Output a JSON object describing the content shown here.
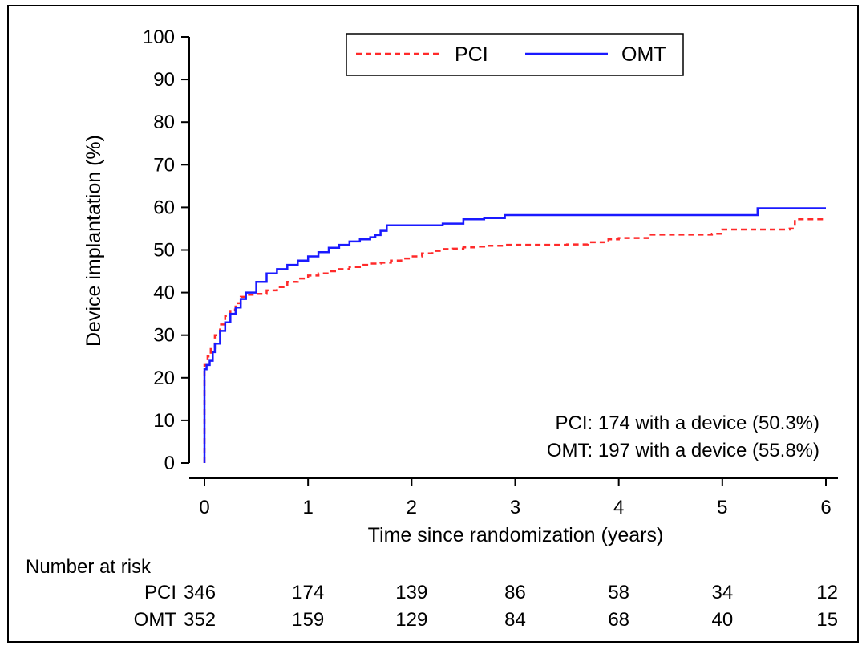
{
  "chart_data": {
    "type": "line",
    "title": "",
    "xlabel": "Time since randomization (years)",
    "ylabel": "Device implantation (%)",
    "xlim": [
      0,
      6
    ],
    "ylim": [
      0,
      100
    ],
    "x_ticks": [
      0,
      1,
      2,
      3,
      4,
      5,
      6
    ],
    "y_ticks": [
      0,
      10,
      20,
      30,
      40,
      50,
      60,
      70,
      80,
      90,
      100
    ],
    "grid": false,
    "legend_placement": "top-center",
    "series": [
      {
        "name": "PCI",
        "color": "#ff2a2a",
        "style": "dashed",
        "points": [
          [
            0,
            0
          ],
          [
            0,
            23
          ],
          [
            0.03,
            25
          ],
          [
            0.06,
            27
          ],
          [
            0.1,
            30
          ],
          [
            0.15,
            32.5
          ],
          [
            0.2,
            34.5
          ],
          [
            0.25,
            36
          ],
          [
            0.3,
            37.5
          ],
          [
            0.35,
            39
          ],
          [
            0.4,
            39.5
          ],
          [
            0.5,
            39.7
          ],
          [
            0.6,
            40.5
          ],
          [
            0.7,
            41.3
          ],
          [
            0.8,
            42.5
          ],
          [
            0.9,
            43.3
          ],
          [
            1.0,
            44
          ],
          [
            1.1,
            44.5
          ],
          [
            1.2,
            45
          ],
          [
            1.3,
            45.5
          ],
          [
            1.4,
            46
          ],
          [
            1.5,
            46.5
          ],
          [
            1.6,
            46.8
          ],
          [
            1.7,
            47
          ],
          [
            1.8,
            47.5
          ],
          [
            1.9,
            48
          ],
          [
            2.0,
            48.5
          ],
          [
            2.1,
            49.2
          ],
          [
            2.2,
            49.8
          ],
          [
            2.3,
            50.2
          ],
          [
            2.4,
            50.3
          ],
          [
            2.5,
            50.6
          ],
          [
            2.6,
            50.8
          ],
          [
            2.7,
            51.0
          ],
          [
            2.9,
            51.2
          ],
          [
            3.5,
            51.3
          ],
          [
            3.7,
            51.8
          ],
          [
            3.9,
            52.5
          ],
          [
            4.0,
            52.8
          ],
          [
            4.3,
            53.6
          ],
          [
            4.9,
            53.8
          ],
          [
            5.0,
            54.8
          ],
          [
            5.65,
            55.0
          ],
          [
            5.7,
            57.2
          ],
          [
            6.0,
            57.3
          ]
        ]
      },
      {
        "name": "OMT",
        "color": "#1a1aff",
        "style": "solid",
        "points": [
          [
            0,
            0
          ],
          [
            0,
            22
          ],
          [
            0.02,
            23
          ],
          [
            0.05,
            24
          ],
          [
            0.08,
            26
          ],
          [
            0.1,
            28
          ],
          [
            0.15,
            31
          ],
          [
            0.2,
            33
          ],
          [
            0.25,
            35
          ],
          [
            0.3,
            36.5
          ],
          [
            0.35,
            38.5
          ],
          [
            0.4,
            40
          ],
          [
            0.5,
            42.5
          ],
          [
            0.6,
            44.5
          ],
          [
            0.7,
            45.5
          ],
          [
            0.8,
            46.5
          ],
          [
            0.9,
            47.5
          ],
          [
            1.0,
            48.5
          ],
          [
            1.1,
            49.5
          ],
          [
            1.2,
            50.5
          ],
          [
            1.3,
            51.2
          ],
          [
            1.4,
            52
          ],
          [
            1.5,
            52.5
          ],
          [
            1.6,
            53
          ],
          [
            1.65,
            53.5
          ],
          [
            1.7,
            54.5
          ],
          [
            1.76,
            55.8
          ],
          [
            2.0,
            55.8
          ],
          [
            2.3,
            56.2
          ],
          [
            2.5,
            57.2
          ],
          [
            2.7,
            57.5
          ],
          [
            2.9,
            58.2
          ],
          [
            5.32,
            58.2
          ],
          [
            5.34,
            59.8
          ],
          [
            6.0,
            59.8
          ]
        ]
      }
    ],
    "annotations": [
      "PCI: 174 with a device (50.3%)",
      "OMT: 197 with a device (55.8%)"
    ]
  },
  "risk_table": {
    "title": "Number at risk",
    "rows": [
      {
        "label": "PCI",
        "values": [
          "346",
          "174",
          "139",
          "86",
          "58",
          "34",
          "12"
        ]
      },
      {
        "label": "OMT",
        "values": [
          "352",
          "159",
          "129",
          "84",
          "68",
          "40",
          "15"
        ]
      }
    ]
  }
}
